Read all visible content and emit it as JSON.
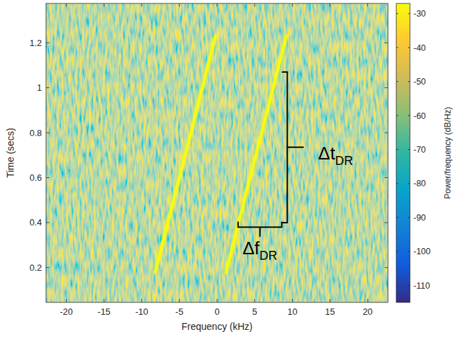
{
  "chart_data": {
    "type": "spectrogram",
    "x_label": "Frequency (kHz)",
    "y_label": "Time (secs)",
    "xlim": [
      -22.7,
      22.7
    ],
    "xticks": [
      -20,
      -15,
      -10,
      -5,
      0,
      5,
      10,
      15,
      20
    ],
    "ylim": [
      0.045,
      1.375
    ],
    "yticks": [
      0.2,
      0.4,
      0.6,
      0.8,
      1,
      1.2
    ],
    "grid": false,
    "series": [
      {
        "type": "line",
        "color": "#f9fb0e",
        "x": [
          -8.2,
          -0.2
        ],
        "values": [
          0.18,
          1.23
        ]
      },
      {
        "type": "line",
        "color": "#f9fb0e",
        "x": [
          1.2,
          9.2
        ],
        "values": [
          0.18,
          1.23
        ]
      }
    ],
    "colorbar": {
      "label": "Power/frequency (dB/Hz)",
      "range": [
        -115,
        -27
      ],
      "ticks": [
        -110,
        -100,
        -90,
        -80,
        -70,
        -60,
        -50,
        -40,
        -30
      ]
    },
    "annotations": [
      {
        "text": "Δt",
        "subscript": "DR",
        "axis": "y",
        "from": 0.4,
        "to": 1.07,
        "at": 8.6
      },
      {
        "text": "Δf",
        "subscript": "DR",
        "axis": "x",
        "from": 2.8,
        "to": 8.6,
        "at": 0.38
      }
    ]
  }
}
